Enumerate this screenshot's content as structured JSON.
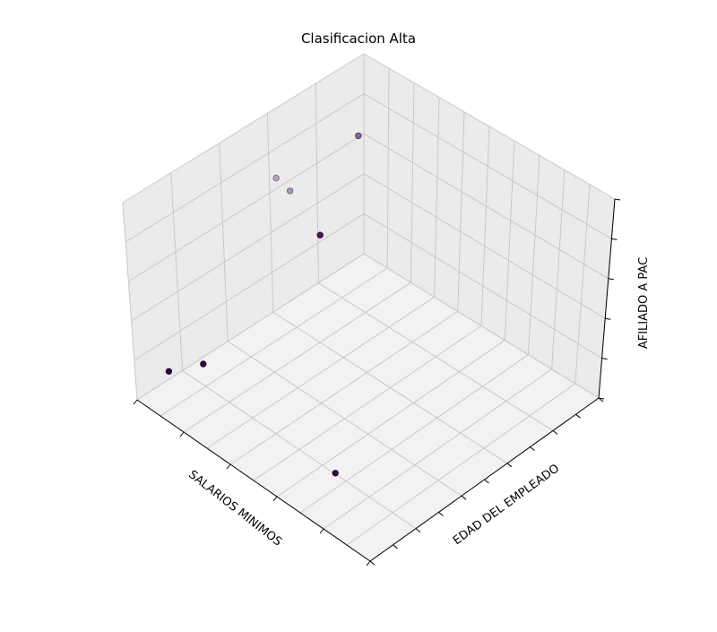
{
  "chart_data": {
    "type": "scatter3d",
    "title": "Clasificacion Alta",
    "xlabel": "SALARIOS MINIMOS",
    "ylabel": "EDAD DEL EMPLEADO",
    "zlabel": "AFILIADO A PAC",
    "xlim": [
      0,
      1
    ],
    "ylim": [
      0,
      1
    ],
    "zlim": [
      0,
      1
    ],
    "grid": true,
    "colors": {
      "pane_floor": "#f2f2f2",
      "pane_wall": "#ebebeb",
      "grid": "#c8c8c8",
      "marker": "#2b0a3d"
    },
    "points": [
      {
        "x": 0.76,
        "y": 0.05,
        "z": 0.04,
        "alpha": 1.0
      },
      {
        "x": 0.83,
        "y": 0.68,
        "z": 0.0,
        "alpha": 1.0
      },
      {
        "x": 0.86,
        "y": 0.0,
        "z": 0.04,
        "alpha": 1.0
      },
      {
        "x": 0.4,
        "y": 0.2,
        "z": 0.53,
        "alpha": 0.9
      },
      {
        "x": 0.45,
        "y": 0.12,
        "z": 0.73,
        "alpha": 0.35
      },
      {
        "x": 0.47,
        "y": 0.08,
        "z": 0.78,
        "alpha": 0.3
      },
      {
        "x": 0.18,
        "y": 0.15,
        "z": 0.83,
        "alpha": 0.55
      }
    ]
  }
}
